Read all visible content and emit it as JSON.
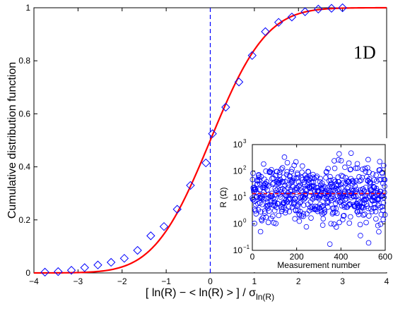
{
  "chart_data": [
    {
      "type": "line",
      "panel_label": "1D",
      "xlabel_main": "[ ln(R) − < ln(R) > ] / σ",
      "xlabel_sub": "ln(R)",
      "ylabel": "Cumulative distribution function",
      "xlim": [
        -4,
        4
      ],
      "ylim": [
        0,
        1
      ],
      "x_ticks": [
        -4,
        -3,
        -2,
        -1,
        0,
        1,
        2,
        3,
        4
      ],
      "x_tick_labels": [
        "−4",
        "−3",
        "−2",
        "−1",
        "0",
        "1",
        "2",
        "3",
        "4"
      ],
      "y_ticks": [
        0,
        0.2,
        0.4,
        0.6,
        0.8,
        1
      ],
      "y_tick_labels": [
        "0",
        "0.2",
        "0.4",
        "0.6",
        "0.8",
        "1"
      ],
      "grid": false,
      "vertical_reference_x": 0,
      "series": [
        {
          "style": "red solid curve (normal CDF)",
          "color": "#ff0000",
          "x": [
            -4,
            -3.5,
            -3,
            -2.5,
            -2,
            -1.75,
            -1.5,
            -1.25,
            -1,
            -0.75,
            -0.5,
            -0.25,
            0,
            0.25,
            0.5,
            0.75,
            1,
            1.25,
            1.5,
            1.75,
            2,
            2.5,
            3,
            3.5,
            4
          ],
          "values": [
            3e-05,
            0.0002,
            0.0013,
            0.0062,
            0.0228,
            0.0401,
            0.0668,
            0.1056,
            0.1587,
            0.2266,
            0.3085,
            0.4013,
            0.5,
            0.5987,
            0.6915,
            0.7734,
            0.8413,
            0.8944,
            0.9332,
            0.9599,
            0.9772,
            0.9938,
            0.9987,
            0.9998,
            0.99997
          ]
        },
        {
          "style": "blue diamond markers (data)",
          "color": "#0000ff",
          "x": [
            -3.75,
            -3.45,
            -3.15,
            -2.85,
            -2.55,
            -2.25,
            -1.95,
            -1.65,
            -1.35,
            -1.05,
            -0.75,
            -0.45,
            -0.1,
            0.05,
            0.35,
            0.65,
            0.95,
            1.25,
            1.55,
            1.85,
            2.15,
            2.45,
            2.75,
            3.0
          ],
          "values": [
            0.003,
            0.005,
            0.01,
            0.02,
            0.03,
            0.04,
            0.055,
            0.085,
            0.14,
            0.175,
            0.24,
            0.33,
            0.415,
            0.525,
            0.625,
            0.72,
            0.82,
            0.91,
            0.945,
            0.965,
            0.985,
            0.995,
            0.998,
            1.0
          ]
        }
      ]
    },
    {
      "type": "scatter",
      "ylabel": "R (Ω)",
      "xlabel": "Measurement number",
      "xlim": [
        0,
        600
      ],
      "ylim": [
        0.1,
        1000
      ],
      "y_scale": "log",
      "x_ticks": [
        0,
        200,
        400,
        600
      ],
      "x_tick_labels": [
        "0",
        "200",
        "400",
        "600"
      ],
      "y_ticks": [
        0.1,
        1,
        10,
        100,
        1000
      ],
      "y_tick_labels": [
        "10",
        "10",
        "10",
        "10",
        "10"
      ],
      "y_tick_exponents": [
        "−1",
        "0",
        "1",
        "2",
        "3"
      ],
      "reference_line": {
        "value": 14,
        "style": "red dashed",
        "color": "#ff0000"
      },
      "marker": {
        "shape": "open circle",
        "color": "#0000ff"
      },
      "n_points": 600,
      "log10_mean": 1.15,
      "log10_std": 0.55
    }
  ]
}
